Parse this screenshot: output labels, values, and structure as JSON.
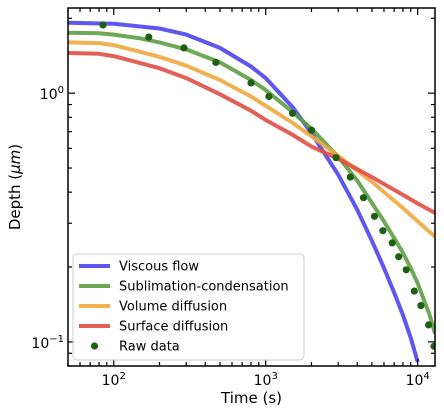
{
  "chart_data": {
    "type": "line",
    "x_scale": "log",
    "y_scale": "log",
    "xlabel": "Time (s)",
    "ylabel_main": "Depth (",
    "ylabel_unit": "μm",
    "ylabel_close": ")",
    "xlim": [
      50,
      13000
    ],
    "ylim": [
      0.08,
      2.2
    ],
    "x_ticks": [
      {
        "value": 100,
        "base": "10",
        "exp": "2"
      },
      {
        "value": 1000,
        "base": "10",
        "exp": "3"
      },
      {
        "value": 10000,
        "base": "10",
        "exp": "4"
      }
    ],
    "y_ticks": [
      {
        "value": 0.1,
        "base": "10",
        "exp": "−1"
      },
      {
        "value": 1,
        "base": "10",
        "exp": "0"
      }
    ],
    "legend_position": "lower-left",
    "series": [
      {
        "name": "Viscous flow",
        "color": "#4b44ef",
        "style": "line",
        "x": [
          50,
          100,
          200,
          300,
          500,
          800,
          1000,
          1500,
          2000,
          3000,
          4000,
          5000,
          6000,
          7000,
          8000,
          9000,
          10000
        ],
        "y": [
          1.92,
          1.9,
          1.82,
          1.72,
          1.52,
          1.28,
          1.15,
          0.88,
          0.69,
          0.47,
          0.34,
          0.255,
          0.198,
          0.158,
          0.128,
          0.104,
          0.083
        ]
      },
      {
        "name": "Sublimation-condensation",
        "color": "#5c9f44",
        "style": "line",
        "x": [
          50,
          80,
          100,
          150,
          200,
          300,
          500,
          800,
          1000,
          1500,
          2000,
          3000,
          4000,
          5000,
          6000,
          7000,
          8000,
          9000,
          10000,
          12000,
          13000
        ],
        "y": [
          1.75,
          1.74,
          1.72,
          1.66,
          1.6,
          1.5,
          1.33,
          1.13,
          1.03,
          0.84,
          0.72,
          0.555,
          0.445,
          0.362,
          0.305,
          0.262,
          0.228,
          0.198,
          0.172,
          0.128,
          0.108
        ]
      },
      {
        "name": "Volume diffusion",
        "color": "#f0a73f",
        "style": "line",
        "x": [
          50,
          80,
          100,
          200,
          300,
          500,
          800,
          1000,
          1500,
          2000,
          3000,
          5000,
          8000,
          10000,
          13000
        ],
        "y": [
          1.6,
          1.59,
          1.56,
          1.4,
          1.29,
          1.13,
          0.97,
          0.89,
          0.76,
          0.67,
          0.56,
          0.44,
          0.345,
          0.305,
          0.265
        ]
      },
      {
        "name": "Surface diffusion",
        "color": "#e14e43",
        "style": "line",
        "x": [
          50,
          80,
          100,
          200,
          300,
          500,
          800,
          1000,
          1500,
          2000,
          3000,
          5000,
          8000,
          10000,
          13000
        ],
        "y": [
          1.45,
          1.44,
          1.41,
          1.26,
          1.15,
          0.99,
          0.85,
          0.78,
          0.68,
          0.61,
          0.545,
          0.46,
          0.39,
          0.36,
          0.33
        ]
      },
      {
        "name": "Raw data",
        "color": "#1f5f14",
        "style": "points",
        "x": [
          85,
          170,
          290,
          470,
          800,
          1050,
          1500,
          2000,
          2900,
          3600,
          4400,
          5200,
          5900,
          6800,
          7500,
          8400,
          9500,
          10500,
          11800,
          12800
        ],
        "y": [
          1.88,
          1.68,
          1.52,
          1.33,
          1.1,
          0.97,
          0.83,
          0.71,
          0.55,
          0.46,
          0.38,
          0.32,
          0.28,
          0.25,
          0.22,
          0.195,
          0.16,
          0.14,
          0.117,
          0.096
        ]
      }
    ]
  }
}
